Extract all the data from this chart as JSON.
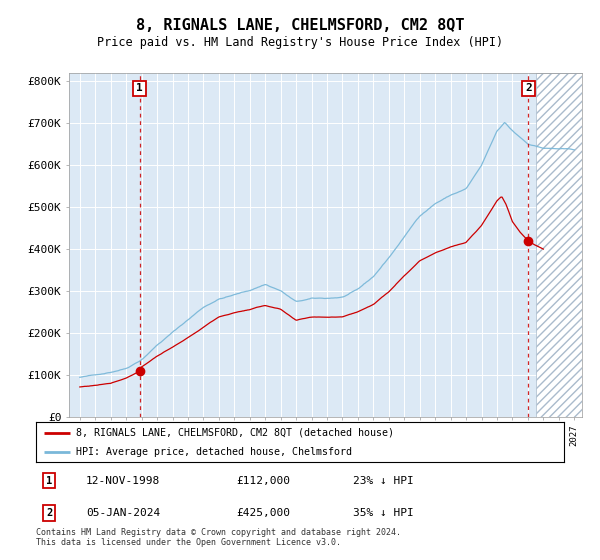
{
  "title": "8, RIGNALS LANE, CHELMSFORD, CM2 8QT",
  "subtitle": "Price paid vs. HM Land Registry's House Price Index (HPI)",
  "legend_line1": "8, RIGNALS LANE, CHELMSFORD, CM2 8QT (detached house)",
  "legend_line2": "HPI: Average price, detached house, Chelmsford",
  "annotation1": {
    "label": "1",
    "date": "12-NOV-1998",
    "price": 112000,
    "hpi_diff": "23% ↓ HPI"
  },
  "annotation2": {
    "label": "2",
    "date": "05-JAN-2024",
    "price": 425000,
    "hpi_diff": "35% ↓ HPI"
  },
  "footer": "Contains HM Land Registry data © Crown copyright and database right 2024.\nThis data is licensed under the Open Government Licence v3.0.",
  "hpi_line_color": "#7ab8d9",
  "price_line_color": "#cc0000",
  "marker_color": "#cc0000",
  "vline_color": "#cc0000",
  "background_color": "#dce9f5",
  "ylim": [
    0,
    820000
  ],
  "yticks": [
    0,
    100000,
    200000,
    300000,
    400000,
    500000,
    600000,
    700000,
    800000
  ],
  "x_start_year": 1995,
  "x_end_year": 2027,
  "sale1_year": 1998.87,
  "sale2_year": 2024.03,
  "hpi_key_years": [
    1995,
    1996,
    1997,
    1998,
    1999,
    2000,
    2001,
    2002,
    2003,
    2004,
    2005,
    2006,
    2007,
    2008,
    2009,
    2010,
    2011,
    2012,
    2013,
    2014,
    2015,
    2016,
    2017,
    2018,
    2019,
    2020,
    2021,
    2022,
    2022.5,
    2023,
    2023.5,
    2024,
    2024.5,
    2025,
    2026,
    2027
  ],
  "hpi_key_vals": [
    95000,
    100000,
    108000,
    118000,
    140000,
    175000,
    205000,
    235000,
    265000,
    285000,
    295000,
    305000,
    320000,
    305000,
    278000,
    285000,
    285000,
    288000,
    305000,
    335000,
    380000,
    430000,
    480000,
    510000,
    530000,
    545000,
    600000,
    680000,
    700000,
    680000,
    665000,
    650000,
    645000,
    640000,
    638000,
    635000
  ],
  "red_key_years": [
    1995,
    1996,
    1997,
    1998,
    1998.87,
    1999,
    2000,
    2001,
    2002,
    2003,
    2004,
    2005,
    2006,
    2007,
    2008,
    2009,
    2010,
    2011,
    2012,
    2013,
    2014,
    2015,
    2016,
    2017,
    2018,
    2019,
    2020,
    2021,
    2021.5,
    2022,
    2022.3,
    2022.6,
    2023,
    2023.5,
    2024.03,
    2024.5,
    2025
  ],
  "red_key_vals": [
    72000,
    76000,
    82000,
    95000,
    112000,
    122000,
    148000,
    168000,
    190000,
    215000,
    240000,
    250000,
    258000,
    268000,
    258000,
    230000,
    238000,
    238000,
    240000,
    252000,
    270000,
    300000,
    340000,
    375000,
    395000,
    410000,
    420000,
    460000,
    490000,
    520000,
    530000,
    510000,
    470000,
    445000,
    425000,
    415000,
    405000
  ]
}
